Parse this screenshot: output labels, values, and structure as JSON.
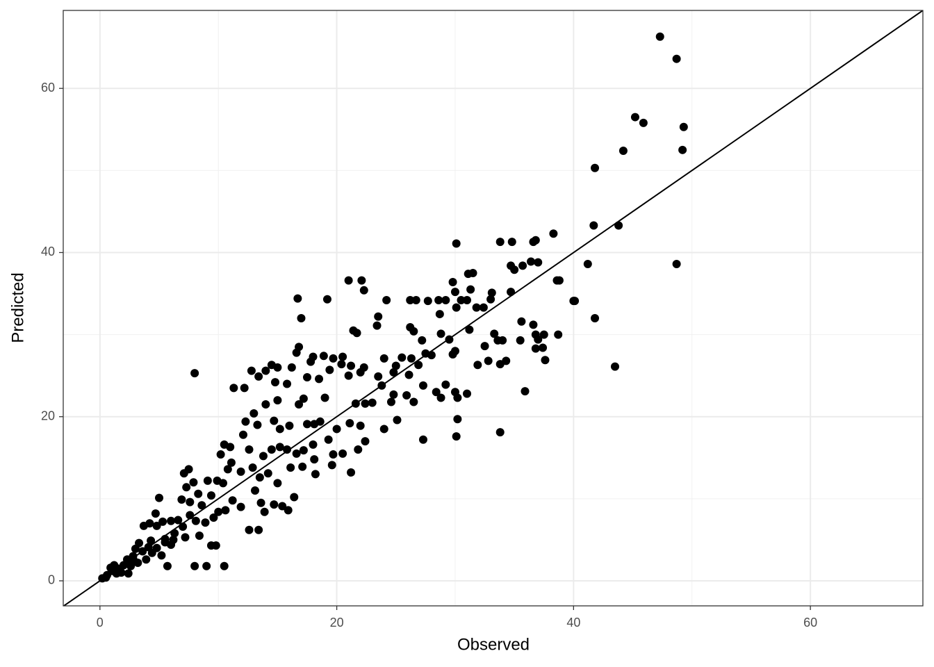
{
  "chart_data": {
    "type": "scatter",
    "x_label": "Observed",
    "y_label": "Predicted",
    "xlim": [
      -3.1,
      69.5
    ],
    "ylim": [
      -3.05,
      69.5
    ],
    "xticks": [
      0,
      20,
      40,
      60
    ],
    "yticks": [
      0,
      20,
      40,
      60
    ],
    "xminor": [
      10,
      30,
      50
    ],
    "yminor": [
      10,
      30,
      50
    ],
    "grid": true,
    "color": "#000000",
    "reference_line": {
      "slope": 1,
      "intercept": 0
    },
    "x": [
      47.3,
      48.7,
      45.2,
      45.9,
      49.3,
      44.2,
      49.2,
      41.8,
      41.7,
      43.8,
      38.3,
      30.1,
      33.8,
      34.8,
      36.6,
      36.8,
      41.2,
      48.7,
      35.7,
      36.4,
      37.0,
      34.7,
      35.0,
      31.1,
      31.5,
      29.8,
      21.0,
      22.1,
      22.3,
      30.0,
      31.3,
      33.1,
      34.7,
      38.6,
      38.8,
      40.0,
      40.1,
      16.7,
      19.2,
      24.2,
      26.2,
      26.7,
      27.7,
      28.6,
      29.2,
      30.5,
      31.0,
      33.0,
      32.4,
      31.8,
      30.1,
      17.0,
      23.5,
      23.4,
      28.7,
      35.6,
      36.6,
      41.8,
      26.5,
      26.2,
      21.4,
      21.7,
      28.8,
      31.2,
      33.3,
      36.8,
      37.5,
      38.7,
      43.5,
      35.5,
      34.0,
      33.6,
      32.5,
      31.9,
      32.8,
      34.3,
      33.8,
      36.8,
      37.4,
      37.6,
      37.0,
      27.2,
      29.5,
      28.0,
      29.8,
      30.0,
      27.5,
      26.9,
      25.0,
      26.1,
      24.8,
      23.5,
      22.0,
      21.2,
      20.5,
      19.7,
      18.9,
      18.0,
      17.8,
      16.6,
      16.8,
      16.2,
      15.0,
      14.5,
      14.0,
      13.4,
      12.8,
      12.2,
      11.3,
      8.0,
      14.8,
      15.8,
      17.5,
      18.5,
      19.4,
      20.4,
      21.0,
      22.3,
      24.0,
      25.5,
      26.3,
      23.8,
      24.8,
      25.9,
      27.3,
      28.4,
      29.2,
      30.0,
      31.0,
      35.9,
      30.2,
      28.8,
      26.5,
      24.6,
      21.6,
      22.4,
      23.0,
      19.0,
      17.2,
      16.8,
      15.0,
      14.0,
      13.0,
      12.3,
      13.3,
      14.7,
      15.2,
      16.0,
      17.5,
      18.1,
      18.6,
      20.0,
      21.1,
      22.0,
      24.0,
      25.1,
      27.3,
      30.1,
      30.2,
      33.8,
      21.2,
      22.4,
      21.8,
      20.5,
      19.7,
      19.3,
      18.0,
      17.2,
      16.6,
      15.8,
      15.2,
      14.5,
      13.8,
      12.6,
      12.1,
      11.0,
      10.5,
      10.2,
      11.1,
      11.9,
      12.9,
      13.5,
      14.2,
      15.0,
      16.1,
      17.1,
      18.2,
      19.6,
      18.1,
      13.1,
      13.6,
      14.7,
      15.4,
      15.9,
      16.4,
      13.9,
      12.6,
      13.4,
      11.9,
      11.2,
      10.4,
      10.8,
      9.9,
      9.1,
      8.3,
      7.9,
      7.3,
      7.1,
      7.5,
      6.9,
      7.6,
      8.6,
      9.4,
      10.0,
      10.6,
      9.6,
      8.9,
      8.1,
      7.6,
      7.0,
      6.6,
      6.0,
      5.3,
      4.8,
      4.2,
      3.7,
      4.7,
      5.0,
      6.0,
      5.7,
      8.0,
      9.0,
      10.5,
      9.4,
      9.8,
      8.4,
      7.2,
      6.3,
      5.5,
      4.8,
      4.3,
      3.6,
      3.0,
      2.8,
      2.3,
      2.0,
      1.5,
      1.0,
      0.6,
      0.2,
      0.5,
      0.9,
      1.8,
      2.4,
      2.6,
      3.2,
      3.9,
      4.4,
      5.2,
      5.5,
      6.2,
      4.1,
      3.3,
      2.9,
      1.4,
      1.2
    ],
    "values": [
      66.3,
      63.6,
      56.5,
      55.8,
      55.3,
      52.4,
      52.5,
      50.3,
      43.3,
      43.3,
      42.3,
      41.1,
      41.3,
      41.3,
      41.3,
      41.5,
      38.6,
      38.6,
      38.4,
      38.9,
      38.8,
      38.4,
      37.9,
      37.4,
      37.5,
      36.4,
      36.6,
      36.6,
      35.4,
      35.2,
      35.5,
      35.1,
      35.2,
      36.6,
      36.6,
      34.1,
      34.1,
      34.4,
      34.3,
      34.2,
      34.2,
      34.2,
      34.1,
      34.2,
      34.2,
      34.2,
      34.2,
      34.3,
      33.3,
      33.3,
      33.3,
      32.0,
      32.2,
      31.1,
      32.5,
      31.6,
      31.2,
      32.0,
      30.4,
      30.9,
      30.5,
      30.2,
      30.1,
      30.6,
      30.1,
      30.0,
      30.0,
      30.0,
      26.1,
      29.3,
      29.3,
      29.3,
      28.6,
      26.3,
      26.8,
      26.8,
      26.4,
      28.3,
      28.4,
      26.9,
      29.4,
      29.3,
      29.4,
      27.5,
      27.6,
      28.0,
      27.7,
      26.3,
      26.2,
      25.1,
      25.4,
      24.9,
      25.4,
      26.2,
      27.3,
      27.1,
      27.4,
      27.3,
      26.7,
      27.8,
      28.5,
      26.0,
      26.0,
      26.3,
      25.6,
      24.9,
      25.6,
      23.5,
      23.5,
      25.3,
      24.2,
      24.0,
      24.8,
      24.6,
      25.7,
      26.4,
      25.0,
      26.0,
      27.1,
      27.2,
      27.1,
      23.8,
      22.7,
      22.6,
      23.8,
      23.0,
      23.9,
      23.0,
      22.8,
      23.1,
      22.3,
      22.3,
      21.8,
      21.8,
      21.6,
      21.6,
      21.7,
      22.3,
      22.2,
      21.5,
      22.0,
      21.5,
      20.4,
      19.4,
      19.0,
      19.5,
      18.5,
      18.9,
      19.1,
      19.1,
      19.4,
      18.5,
      19.2,
      18.9,
      18.5,
      19.6,
      17.2,
      17.6,
      19.7,
      18.1,
      13.2,
      17.0,
      16.0,
      15.5,
      15.4,
      17.2,
      16.6,
      15.9,
      15.5,
      16.0,
      16.3,
      16.0,
      15.2,
      16.0,
      17.8,
      16.3,
      16.6,
      15.4,
      14.4,
      13.3,
      13.8,
      12.6,
      13.1,
      11.9,
      13.8,
      13.9,
      13.0,
      14.1,
      14.8,
      11.0,
      9.5,
      9.3,
      9.1,
      8.6,
      10.2,
      8.4,
      6.2,
      6.2,
      9.0,
      9.8,
      11.9,
      13.6,
      12.2,
      12.2,
      10.6,
      12.0,
      11.4,
      13.1,
      13.6,
      9.9,
      9.6,
      9.2,
      10.4,
      8.4,
      8.6,
      7.7,
      7.1,
      7.3,
      8.0,
      6.6,
      7.4,
      7.3,
      7.2,
      6.7,
      7.0,
      6.7,
      8.2,
      10.1,
      4.4,
      1.8,
      1.8,
      1.8,
      1.8,
      4.3,
      4.3,
      5.5,
      5.3,
      5.8,
      5.1,
      4.0,
      4.9,
      3.6,
      3.9,
      3.0,
      2.6,
      1.9,
      1.5,
      1.2,
      0.7,
      0.3,
      0.4,
      1.6,
      1.0,
      0.9,
      1.8,
      2.2,
      2.6,
      3.4,
      3.1,
      4.7,
      5.0,
      4.1,
      4.6,
      2.4,
      0.9,
      1.9
    ]
  }
}
